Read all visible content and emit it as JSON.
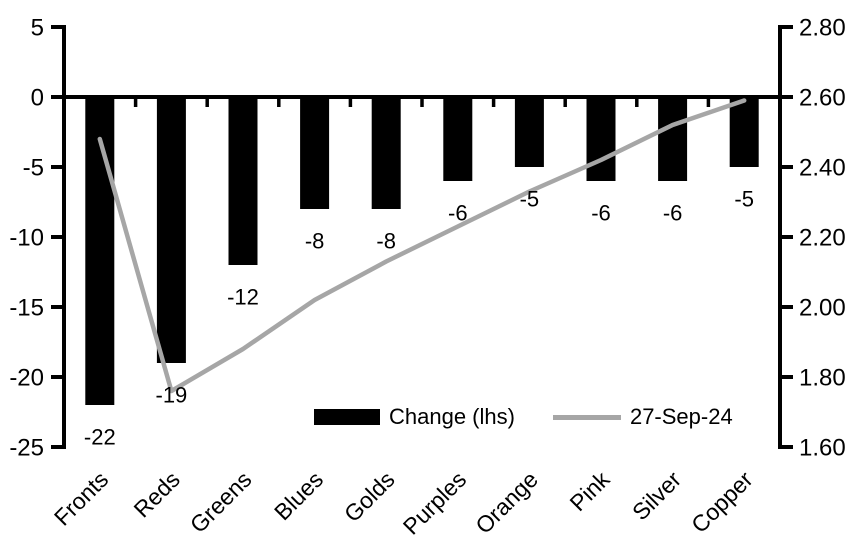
{
  "chart_data": {
    "type": "bar+line",
    "title": "",
    "grid": false,
    "background": "#ffffff",
    "categories": [
      "Fronts",
      "Reds",
      "Greens",
      "Blues",
      "Golds",
      "Purples",
      "Orange",
      "Pink",
      "Silver",
      "Copper"
    ],
    "series": [
      {
        "name": "Change (lhs)",
        "type": "bar",
        "axis": "left",
        "color": "#000000",
        "values": [
          -22,
          -19,
          -12,
          -8,
          -8,
          -6,
          -5,
          -6,
          -6,
          -5
        ],
        "data_labels": [
          "-22",
          "-19",
          "-12",
          "-8",
          "-8",
          "-6",
          "-5",
          "-6",
          "-6",
          "-5"
        ]
      },
      {
        "name": "27-Sep-24",
        "type": "line",
        "axis": "right",
        "color": "#a6a6a6",
        "values": [
          2.48,
          1.76,
          1.88,
          2.02,
          2.13,
          2.23,
          2.33,
          2.42,
          2.52,
          2.59
        ]
      }
    ],
    "left_axis": {
      "min": -25,
      "max": 5,
      "step": 5,
      "tick_labels": [
        "5",
        "0",
        "-5",
        "-10",
        "-15",
        "-20",
        "-25"
      ]
    },
    "right_axis": {
      "min": 1.6,
      "max": 2.8,
      "step": 0.2,
      "tick_labels": [
        "2.80",
        "2.60",
        "2.40",
        "2.20",
        "2.00",
        "1.80",
        "1.60"
      ]
    },
    "legend": {
      "position": "inside-bottom",
      "items": [
        {
          "label": "Change (lhs)",
          "swatch": "bar",
          "color": "#000000"
        },
        {
          "label": "27-Sep-24",
          "swatch": "line",
          "color": "#a6a6a6"
        }
      ]
    },
    "axis_color": "#000000"
  }
}
